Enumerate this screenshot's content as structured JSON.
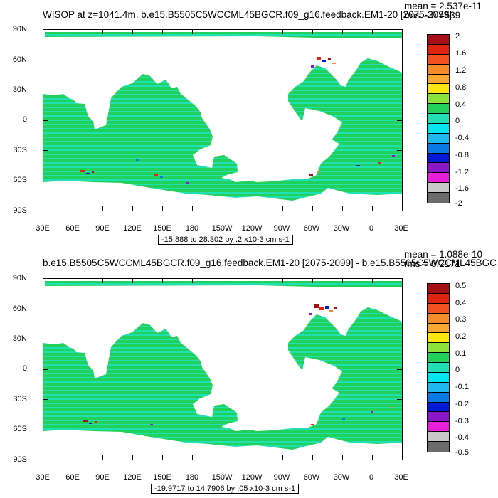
{
  "panels": [
    {
      "title": "WISOP at z=1041.4m, b.e15.B5505C5WCCML45BGCR.f09_g16.feedback.EM1-20 [2075-2099]",
      "mean_text": "mean = 2.537e-11",
      "rms_text": "rms = 0.4539",
      "range_text": "-15.888 to 28.302 by .2 x10-3 cm s-1",
      "colorbar_labels": [
        "2",
        "1.6",
        "1.2",
        "0.8",
        "0.4",
        "0",
        "-0.4",
        "-0.8",
        "-1.2",
        "-1.6",
        "-2"
      ]
    },
    {
      "title": "b.e15.B5505C5WCCML45BGCR.f09_g16.feedback.EM1-20 [2075-2099] - b.e15.B5505C5WCCML45BGC",
      "mean_text": "mean = 1.088e-10",
      "rms_text": "rms = 0.2171",
      "range_text": "-19.9717 to 14.7906 by .05 x10-3 cm s-1",
      "colorbar_labels": [
        "0.5",
        "0.4",
        "0.3",
        "0.2",
        "0.1",
        "0",
        "-0.1",
        "-0.2",
        "-0.3",
        "-0.4",
        "-0.5"
      ]
    }
  ],
  "axes": {
    "y_ticks": [
      "90N",
      "60N",
      "30N",
      "0",
      "30S",
      "60S",
      "90S"
    ],
    "x_ticks": [
      "30E",
      "60E",
      "90E",
      "120E",
      "150E",
      "180",
      "150W",
      "120W",
      "90W",
      "60W",
      "30W",
      "0",
      "30E"
    ]
  },
  "colorbar_colors": [
    "#a50f15",
    "#e0230f",
    "#f4501e",
    "#f58b2a",
    "#f9a832",
    "#fde60f",
    "#8ce43a",
    "#22d15a",
    "#1ee0b4",
    "#00e6f0",
    "#1cb8ee",
    "#0a78e6",
    "#0018d8",
    "#8a17c8",
    "#e81ed8",
    "#c8c8c8",
    "#6b6b6b"
  ],
  "chart_data": [
    {
      "type": "heatmap",
      "title": "WISOP at z=1041.4m, b.e15.B5505C5WCCML45BGCR.f09_g16.feedback.EM1-20 [2075-2099]",
      "x_ticks": [
        "30E",
        "60E",
        "90E",
        "120E",
        "150E",
        "180",
        "150W",
        "120W",
        "90W",
        "60W",
        "30W",
        "0",
        "30E"
      ],
      "y_ticks": [
        "90N",
        "60N",
        "30N",
        "0",
        "30S",
        "60S",
        "90S"
      ],
      "colorbar_levels": [
        2,
        1.6,
        1.2,
        0.8,
        0.4,
        0,
        -0.4,
        -0.8,
        -1.2,
        -1.6,
        -2
      ],
      "mean": 2.537e-11,
      "rms": 0.4539,
      "range": [
        -15.888,
        28.302
      ]
    },
    {
      "type": "heatmap",
      "title": "b.e15.B5505C5WCCML45BGCR.f09_g16.feedback.EM1-20 [2075-2099] - b.e15.B5505C5WCCML45BGC",
      "x_ticks": [
        "30E",
        "60E",
        "90E",
        "120E",
        "150E",
        "180",
        "150W",
        "120W",
        "90W",
        "60W",
        "30W",
        "0",
        "30E"
      ],
      "y_ticks": [
        "90N",
        "60N",
        "30N",
        "0",
        "30S",
        "60S",
        "90S"
      ],
      "colorbar_levels": [
        0.5,
        0.4,
        0.3,
        0.2,
        0.1,
        0,
        -0.1,
        -0.2,
        -0.3,
        -0.4,
        -0.5
      ],
      "mean": 1.088e-10,
      "rms": 0.2171,
      "range": [
        -19.9717,
        14.7906
      ]
    }
  ]
}
